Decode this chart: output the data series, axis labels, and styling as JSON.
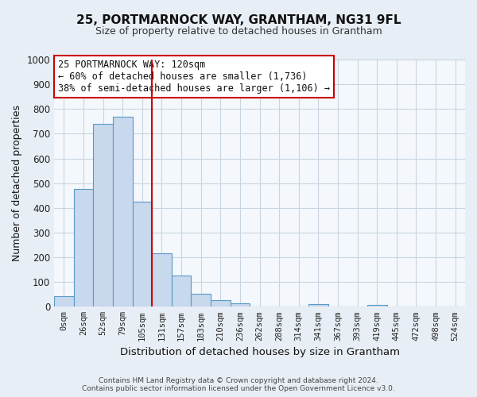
{
  "title": "25, PORTMARNOCK WAY, GRANTHAM, NG31 9FL",
  "subtitle": "Size of property relative to detached houses in Grantham",
  "xlabel": "Distribution of detached houses by size in Grantham",
  "ylabel": "Number of detached properties",
  "bar_labels": [
    "0sqm",
    "26sqm",
    "52sqm",
    "79sqm",
    "105sqm",
    "131sqm",
    "157sqm",
    "183sqm",
    "210sqm",
    "236sqm",
    "262sqm",
    "288sqm",
    "314sqm",
    "341sqm",
    "367sqm",
    "393sqm",
    "419sqm",
    "445sqm",
    "472sqm",
    "498sqm",
    "524sqm"
  ],
  "bar_heights": [
    42,
    475,
    740,
    770,
    425,
    215,
    125,
    52,
    28,
    15,
    0,
    0,
    0,
    10,
    0,
    0,
    8,
    0,
    0,
    0,
    0
  ],
  "bar_color": "#c8d8ed",
  "bar_edge_color": "#5a9ac5",
  "vline_color": "#cc0000",
  "annotation_lines": [
    "25 PORTMARNOCK WAY: 120sqm",
    "← 60% of detached houses are smaller (1,736)",
    "38% of semi-detached houses are larger (1,106) →"
  ],
  "annotation_box_color": "#ffffff",
  "annotation_box_edge": "#cc0000",
  "ylim": [
    0,
    1000
  ],
  "footer_line1": "Contains HM Land Registry data © Crown copyright and database right 2024.",
  "footer_line2": "Contains public sector information licensed under the Open Government Licence v3.0.",
  "background_color": "#e8eef5",
  "plot_background_color": "#f4f8fc",
  "grid_color": "#c8d4e0"
}
